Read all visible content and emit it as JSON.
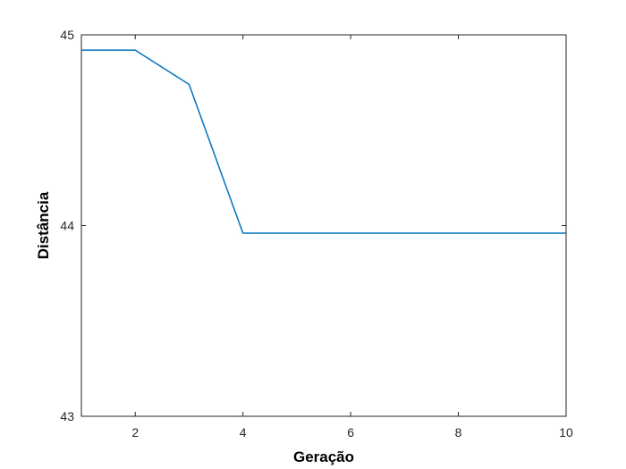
{
  "chart_data": {
    "type": "line",
    "title": "",
    "xlabel": "Geração",
    "ylabel": "Distância",
    "xlim": [
      1,
      10
    ],
    "ylim": [
      43,
      45
    ],
    "xticks": [
      2,
      4,
      6,
      8,
      10
    ],
    "xtick_labels": [
      "2",
      "4",
      "6",
      "8",
      "10"
    ],
    "yticks": [
      43,
      44,
      45
    ],
    "ytick_labels": [
      "43",
      "44",
      "45"
    ],
    "grid": false,
    "legend": "none",
    "series": [
      {
        "color": "#0072BD",
        "x": [
          1,
          2,
          3,
          4,
          5,
          6,
          7,
          8,
          9,
          10
        ],
        "y": [
          44.92,
          44.92,
          44.74,
          43.96,
          43.96,
          43.96,
          43.96,
          43.96,
          43.96,
          43.96
        ]
      }
    ]
  }
}
